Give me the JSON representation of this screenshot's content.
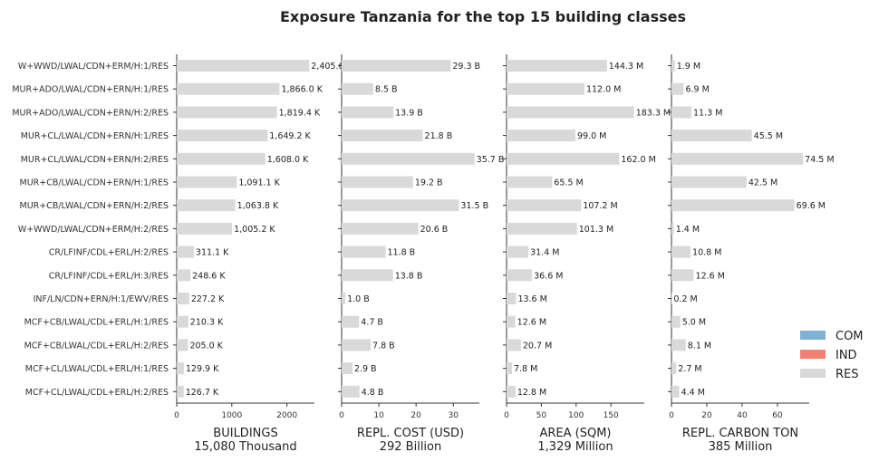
{
  "chart_data": {
    "type": "bar",
    "orientation": "horizontal",
    "title": "Exposure Tanzania for the top 15 building classes",
    "categories": [
      "W+WWD/LWAL/CDN+ERM/H:1/RES",
      "MUR+ADO/LWAL/CDN+ERN/H:1/RES",
      "MUR+ADO/LWAL/CDN+ERN/H:2/RES",
      "MUR+CL/LWAL/CDN+ERN/H:1/RES",
      "MUR+CL/LWAL/CDN+ERN/H:2/RES",
      "MUR+CB/LWAL/CDN+ERN/H:1/RES",
      "MUR+CB/LWAL/CDN+ERN/H:2/RES",
      "W+WWD/LWAL/CDN+ERM/H:2/RES",
      "CR/LFINF/CDL+ERL/H:2/RES",
      "CR/LFINF/CDL+ERL/H:3/RES",
      "INF/LN/CDN+ERN/H:1/EWV/RES",
      "MCF+CB/LWAL/CDL+ERL/H:1/RES",
      "MCF+CB/LWAL/CDL+ERL/H:2/RES",
      "MCF+CL/LWAL/CDL+ERL/H:1/RES",
      "MCF+CL/LWAL/CDL+ERL/H:2/RES"
    ],
    "panels": [
      {
        "xlabel": "BUILDINGS",
        "subtitle": "15,080 Thousand",
        "xlim": [
          0,
          2500
        ],
        "xticks": [
          0,
          1000,
          2000
        ],
        "xticklabels": [
          "0",
          "1000",
          "2000"
        ],
        "values": [
          2405.6,
          1866.0,
          1819.4,
          1649.2,
          1608.0,
          1091.1,
          1063.8,
          1005.2,
          311.1,
          248.6,
          227.2,
          210.3,
          205.0,
          129.9,
          126.7
        ],
        "labels": [
          "2,405.6 K",
          "1,866.0 K",
          "1,819.4 K",
          "1,649.2 K",
          "1,608.0 K",
          "1,091.1 K",
          "1,063.8 K",
          "1,005.2 K",
          "311.1 K",
          "248.6 K",
          "227.2 K",
          "210.3 K",
          "205.0 K",
          "129.9 K",
          "126.7 K"
        ]
      },
      {
        "xlabel": "REPL. COST (USD)",
        "subtitle": "292 Billion",
        "xlim": [
          0,
          37
        ],
        "xticks": [
          0,
          10,
          20,
          30
        ],
        "xticklabels": [
          "0",
          "10",
          "20",
          "30"
        ],
        "values": [
          29.3,
          8.5,
          13.9,
          21.8,
          35.7,
          19.2,
          31.5,
          20.6,
          11.8,
          13.8,
          1.0,
          4.7,
          7.8,
          2.9,
          4.8
        ],
        "labels": [
          "29.3 B",
          "8.5 B",
          "13.9 B",
          "21.8 B",
          "35.7 B",
          "19.2 B",
          "31.5 B",
          "20.6 B",
          "11.8 B",
          "13.8 B",
          "1.0 B",
          "4.7 B",
          "7.8 B",
          "2.9 B",
          "4.8 B"
        ]
      },
      {
        "xlabel": "AREA (SQM)",
        "subtitle": "1,329 Million",
        "xlim": [
          0,
          198
        ],
        "xticks": [
          0,
          50,
          100,
          150
        ],
        "xticklabels": [
          "0",
          "50",
          "100",
          "150"
        ],
        "values": [
          144.3,
          112.0,
          183.3,
          99.0,
          162.0,
          65.5,
          107.2,
          101.3,
          31.4,
          36.6,
          13.6,
          12.6,
          20.7,
          7.8,
          12.8
        ],
        "labels": [
          "144.3 M",
          "112.0 M",
          "183.3 M",
          "99.0 M",
          "162.0 M",
          "65.5 M",
          "107.2 M",
          "101.3 M",
          "31.4 M",
          "36.6 M",
          "13.6 M",
          "12.6 M",
          "20.7 M",
          "7.8 M",
          "12.8 M"
        ]
      },
      {
        "xlabel": "REPL. CARBON TON",
        "subtitle": "385 Million",
        "xlim": [
          0,
          78
        ],
        "xticks": [
          0,
          20,
          40,
          60
        ],
        "xticklabels": [
          "0",
          "20",
          "40",
          "60"
        ],
        "values": [
          1.9,
          6.9,
          11.3,
          45.5,
          74.5,
          42.5,
          69.6,
          1.4,
          10.8,
          12.6,
          0.2,
          5.0,
          8.1,
          2.7,
          4.4
        ],
        "labels": [
          "1.9 M",
          "6.9 M",
          "11.3 M",
          "45.5 M",
          "74.5 M",
          "42.5 M",
          "69.6 M",
          "1.4 M",
          "10.8 M",
          "12.6 M",
          "0.2 M",
          "5.0 M",
          "8.1 M",
          "2.7 M",
          "4.4 M"
        ]
      }
    ],
    "legend": {
      "placement": "right",
      "items": [
        {
          "name": "COM",
          "color": "#7fb1d3"
        },
        {
          "name": "IND",
          "color": "#f38072"
        },
        {
          "name": "RES",
          "color": "#d9d9d9"
        }
      ]
    },
    "bar_color": "#d9d9d9",
    "grid": false
  }
}
